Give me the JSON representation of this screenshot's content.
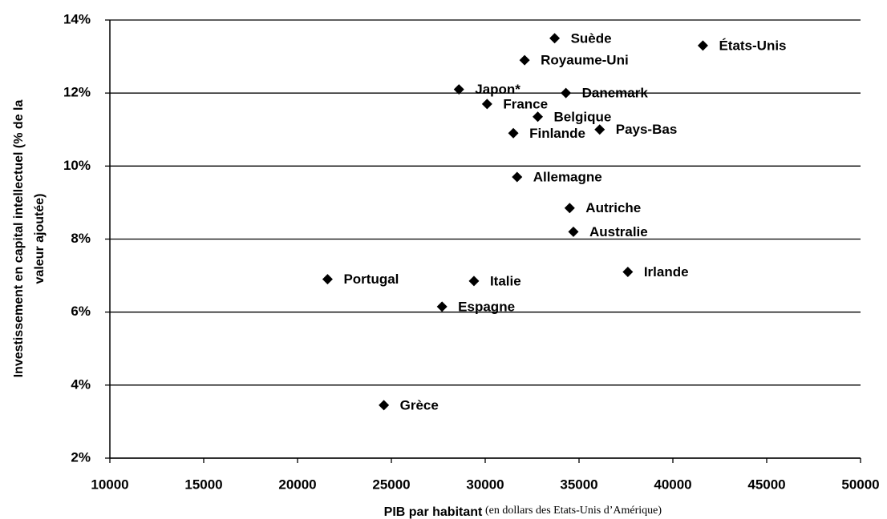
{
  "chart_data": {
    "type": "scatter",
    "ylabel": [
      "Investissement en capital intellectuel (% de la",
      "valeur ajoutée)"
    ],
    "xlabel": "PIB par habitant",
    "xlabel_note": "(en dollars des Etats-Unis d’Amérique)",
    "labels": [
      "Suède",
      "États-Unis",
      "Royaume-Uni",
      "Japon*",
      "Danemark",
      "France",
      "Belgique",
      "Pays-Bas",
      "Finlande",
      "Allemagne",
      "Autriche",
      "Australie",
      "Irlande",
      "Portugal",
      "Italie",
      "Espagne",
      "Grèce"
    ],
    "x": [
      33700,
      41600,
      32100,
      28600,
      34300,
      30100,
      32800,
      36100,
      31500,
      31700,
      34500,
      34700,
      37600,
      21600,
      29400,
      27700,
      24600
    ],
    "values": [
      13.5,
      13.3,
      12.9,
      12.1,
      12.0,
      11.7,
      11.35,
      11.0,
      10.9,
      9.7,
      8.85,
      8.2,
      7.1,
      6.9,
      6.85,
      6.15,
      3.45
    ],
    "color": "#000000",
    "xlim": [
      10000,
      50000
    ],
    "xticks": [
      10000,
      15000,
      20000,
      25000,
      30000,
      35000,
      40000,
      45000,
      50000
    ],
    "ylim": [
      2,
      14
    ],
    "yticks": [
      {
        "value": 2,
        "label": "2%"
      },
      {
        "value": 4,
        "label": "4%"
      },
      {
        "value": 6,
        "label": "6%"
      },
      {
        "value": 8,
        "label": "8%"
      },
      {
        "value": 10,
        "label": "10%"
      },
      {
        "value": 12,
        "label": "12%"
      },
      {
        "value": 14,
        "label": "14%"
      }
    ],
    "grid": true
  }
}
